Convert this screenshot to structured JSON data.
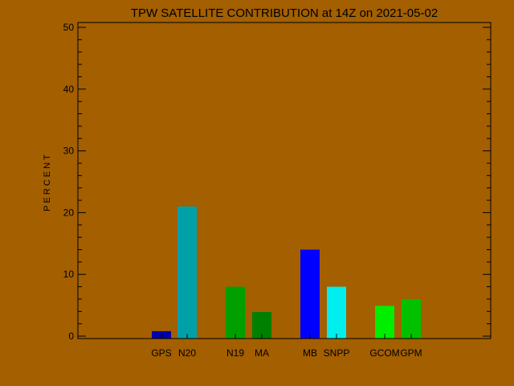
{
  "chart_data": {
    "type": "bar",
    "title": "TPW SATELLITE CONTRIBUTION at 14Z on 2021-05-02",
    "xlabel": "",
    "ylabel": "PERCENT",
    "ylim": [
      0,
      50
    ],
    "yticks": [
      0,
      10,
      20,
      30,
      40,
      50
    ],
    "grid": false,
    "legend": "none",
    "background_color": "#a35f00",
    "categories": [
      "GPS",
      "N20",
      "N19",
      "MA",
      "MB",
      "SNPP",
      "GCOM",
      "GPM"
    ],
    "values": [
      0.8,
      21.0,
      8.0,
      3.9,
      14.0,
      8.0,
      4.9,
      6.0
    ],
    "colors": [
      "#0000aa",
      "#00a0a8",
      "#00a000",
      "#008000",
      "#0000ff",
      "#00eeee",
      "#00ee00",
      "#00c000"
    ]
  }
}
